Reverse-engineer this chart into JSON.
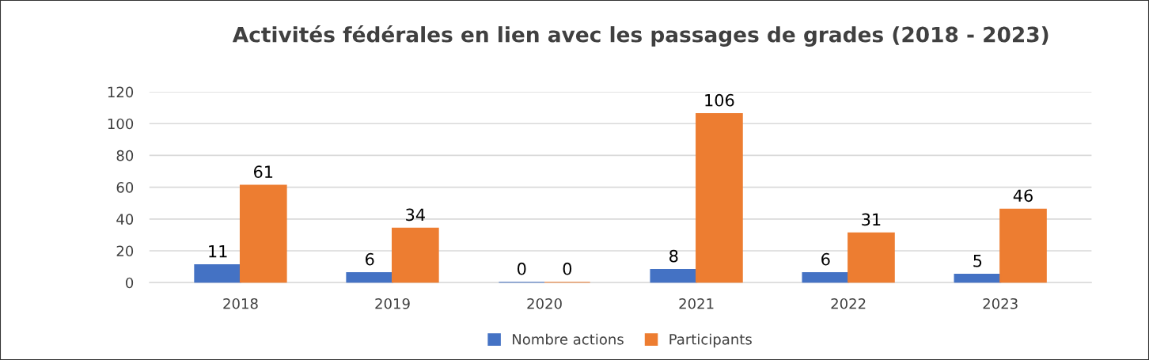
{
  "chart_data": {
    "type": "bar",
    "title": "Activités fédérales en lien avec les passages de grades (2018 - 2023)",
    "categories": [
      "2018",
      "2019",
      "2020",
      "2021",
      "2022",
      "2023"
    ],
    "series": [
      {
        "name": "Nombre actions",
        "color": "#4472c4",
        "values": [
          11,
          6,
          0,
          8,
          6,
          5
        ]
      },
      {
        "name": "Participants",
        "color": "#ed7d31",
        "values": [
          61,
          34,
          0,
          106,
          31,
          46
        ]
      }
    ],
    "ylim": [
      0,
      120
    ],
    "yticks": [
      0,
      20,
      40,
      60,
      80,
      100,
      120
    ],
    "grid": "y",
    "legend": "bottom",
    "data_labels": true
  }
}
